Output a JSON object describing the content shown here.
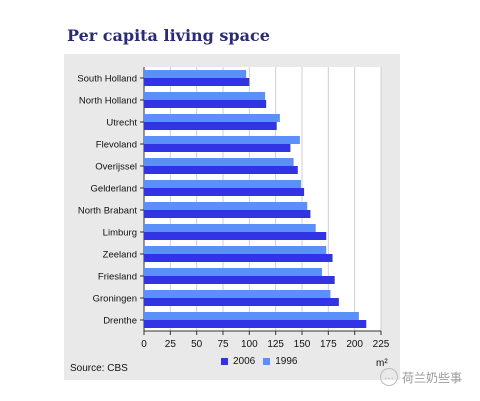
{
  "chart_data": {
    "type": "bar",
    "orientation": "horizontal",
    "title": "Per capita living space",
    "categories": [
      "South Holland",
      "North Holland",
      "Utrecht",
      "Flevoland",
      "Overijssel",
      "Gelderland",
      "North Brabant",
      "Limburg",
      "Zeeland",
      "Friesland",
      "Groningen",
      "Drenthe"
    ],
    "series": [
      {
        "name": "1996",
        "color": "#5b8ff9",
        "values": [
          97,
          115,
          129,
          148,
          142,
          149,
          155,
          163,
          173,
          169,
          177,
          204
        ]
      },
      {
        "name": "2006",
        "color": "#3333e6",
        "values": [
          100,
          116,
          126,
          139,
          146,
          152,
          158,
          173,
          179,
          181,
          185,
          211
        ]
      }
    ],
    "xlim": [
      0,
      225
    ],
    "xticks": [
      "0",
      "25",
      "50",
      "75",
      "100",
      "125",
      "150",
      "175",
      "200",
      "225"
    ],
    "unit": "m²",
    "grid": true,
    "legend_position": "bottom"
  },
  "legend": {
    "label_2006": "2006",
    "label_1996": "1996"
  },
  "source": "Source: CBS",
  "watermark": "荷兰奶些事"
}
